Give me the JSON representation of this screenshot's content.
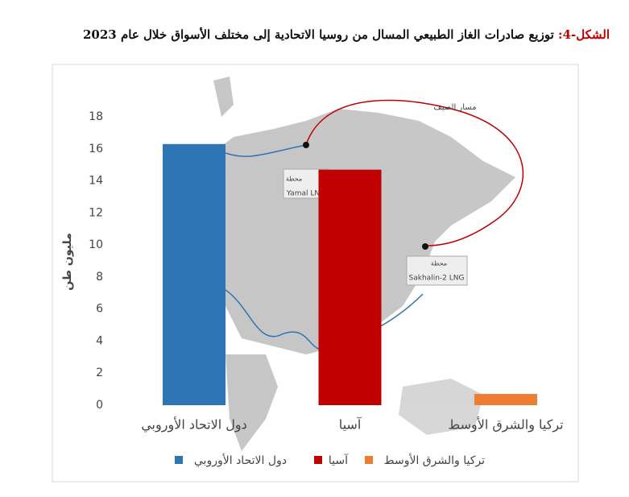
{
  "chart_data": {
    "type": "bar",
    "figure_label": "الشكل-4:",
    "title": "توزيع صادرات الغاز الطبيعي المسال من روسيا الاتحادية إلى مختلف الأسواق خلال عام 2023",
    "y_label": "مليون طن",
    "categories": [
      "دول الاتحاد الأوروبي",
      "آسيا",
      "تركيا والشرق الأوسط"
    ],
    "series": [
      {
        "name": "دول الاتحاد الأوروبي",
        "color": "#2e75b6",
        "values": [
          16.3,
          null,
          null
        ]
      },
      {
        "name": "آسيا",
        "color": "#c00000",
        "values": [
          null,
          14.7,
          null
        ]
      },
      {
        "name": "تركيا والشرق الأوسط",
        "color": "#ed7d31",
        "values": [
          null,
          null,
          0.7
        ]
      }
    ],
    "ylim": [
      0,
      18
    ],
    "yticks": [
      0,
      2,
      4,
      6,
      8,
      10,
      12,
      14,
      16,
      18
    ],
    "grid": false,
    "annotations": [
      "مسار الصيف",
      "محطة",
      "Yamal LNG",
      "محطة",
      "Sakhalin-2 LNG"
    ]
  }
}
